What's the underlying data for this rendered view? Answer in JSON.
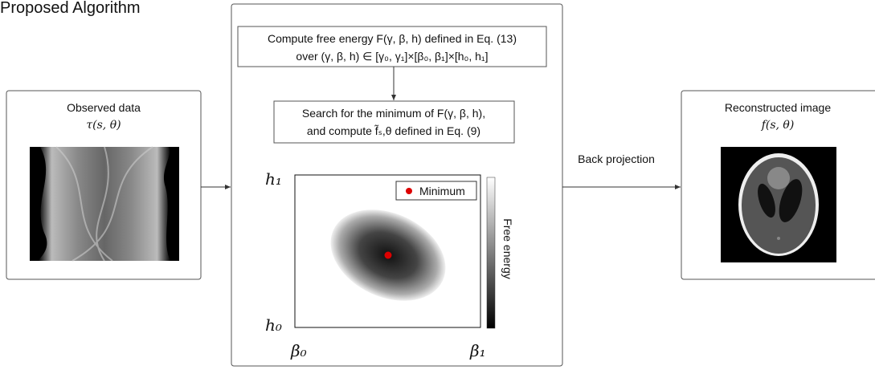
{
  "title": "Proposed Algorithm",
  "input": {
    "title": "Observed data",
    "symbol": "τ(s, θ)"
  },
  "steps": [
    {
      "lines": [
        "Compute free energy F(γ, β, h) defined in Eq. (13)",
        "over (γ, β, h) ∈ [γ₀, γ₁]×[β₀, β₁]×[h₀, h₁]"
      ]
    },
    {
      "lines": [
        "Search for the minimum of F(γ, β, h),",
        "and compute f̃ₛ,θ defined in Eq. (9)"
      ]
    }
  ],
  "plot": {
    "y_top": "h₁",
    "y_bottom": "h₀",
    "x_left": "β₀",
    "x_right": "β₁",
    "legend": "Minimum",
    "colorbar_label": "Free energy"
  },
  "edge_label": "Back projection",
  "output": {
    "title": "Reconstructed image",
    "symbol": "f(s, θ)"
  }
}
